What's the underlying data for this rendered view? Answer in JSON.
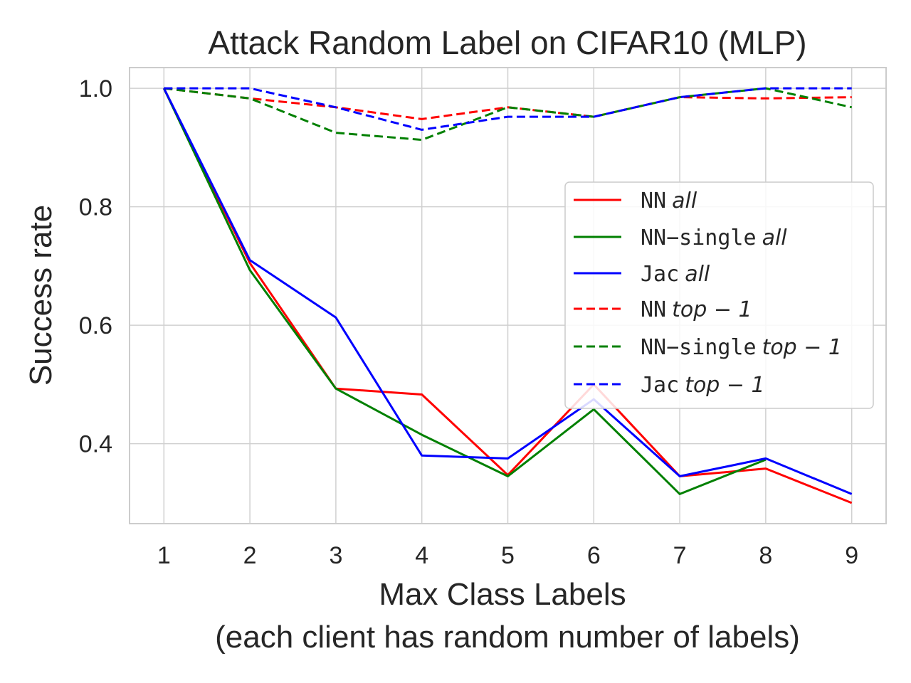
{
  "chart_data": {
    "type": "line",
    "title": "Attack Random Label on CIFAR10 (MLP)",
    "xlabel": "Max Class Labels",
    "xlabel_line2": "(each client has random number of labels)",
    "ylabel": "Success rate",
    "x": [
      1,
      2,
      3,
      4,
      5,
      6,
      7,
      8,
      9
    ],
    "xlim": [
      0.6,
      9.4
    ],
    "ylim": [
      0.265,
      1.035
    ],
    "yticks": [
      0.4,
      0.6,
      0.8,
      1.0
    ],
    "ytick_labels": [
      "0.4",
      "0.6",
      "0.8",
      "1.0"
    ],
    "xtick_labels": [
      "1",
      "2",
      "3",
      "4",
      "5",
      "6",
      "7",
      "8",
      "9"
    ],
    "grid": true,
    "legend_position": "center-right",
    "series": [
      {
        "name_mono": "NN",
        "name_ital": "all",
        "color": "#ff0000",
        "dash": "solid",
        "values": [
          1.0,
          0.705,
          0.493,
          0.483,
          0.347,
          0.5,
          0.345,
          0.358,
          0.3
        ]
      },
      {
        "name_mono": "NN−single",
        "name_ital": "all",
        "color": "#008000",
        "dash": "solid",
        "values": [
          1.0,
          0.693,
          0.493,
          0.415,
          0.345,
          0.458,
          0.315,
          0.373,
          null
        ]
      },
      {
        "name_mono": "Jac",
        "name_ital": "all",
        "color": "#0000ff",
        "dash": "solid",
        "values": [
          1.0,
          0.71,
          0.613,
          0.38,
          0.375,
          0.475,
          0.345,
          0.375,
          0.315
        ]
      },
      {
        "name_mono": "NN",
        "name_ital": "top − 1",
        "color": "#ff0000",
        "dash": "dashed",
        "values": [
          1.0,
          0.983,
          0.968,
          0.948,
          0.968,
          0.952,
          0.985,
          0.983,
          0.985
        ]
      },
      {
        "name_mono": "NN−single",
        "name_ital": "top − 1",
        "color": "#008000",
        "dash": "dashed",
        "values": [
          1.0,
          0.983,
          0.925,
          0.913,
          0.968,
          0.952,
          0.985,
          1.0,
          0.968
        ]
      },
      {
        "name_mono": "Jac",
        "name_ital": "top − 1",
        "color": "#0000ff",
        "dash": "dashed",
        "values": [
          1.0,
          1.0,
          0.968,
          0.93,
          0.952,
          0.952,
          0.985,
          1.0,
          1.0
        ]
      }
    ]
  }
}
